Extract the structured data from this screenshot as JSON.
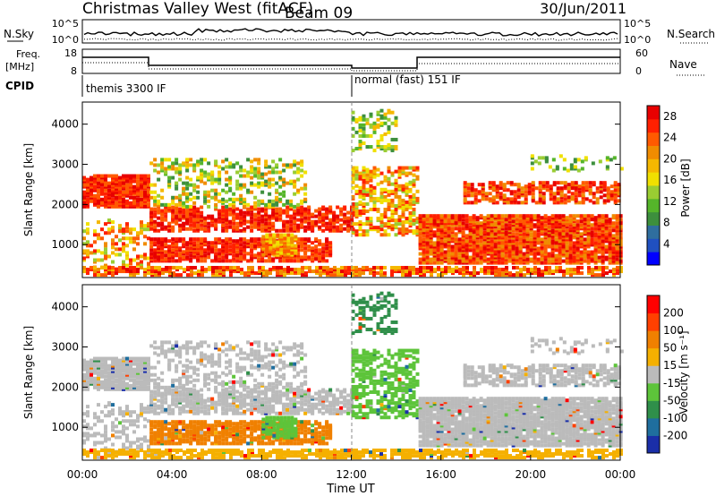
{
  "header": {
    "title": "Christmas Valley West (fitACF)",
    "beam": "Beam 09",
    "date": "30/Jun/2011"
  },
  "panels": {
    "nsky": {
      "label": "N.Sky",
      "ticks": [
        "10^5",
        "10^0"
      ],
      "right_label": "N.Search",
      "right_ticks": [
        "10^5",
        "10^0"
      ]
    },
    "freq": {
      "label_line1": "Freq.",
      "label_line2": "[MHz]",
      "ticks": [
        "18",
        "8"
      ],
      "right_label": "Nave",
      "right_ticks": [
        "60",
        "0"
      ]
    },
    "cpid": {
      "label": "CPID",
      "modes": [
        "themis 3300 IF",
        "normal (fast) 151 IF"
      ]
    }
  },
  "chart_data": [
    {
      "type": "heatmap",
      "name": "power",
      "ylabel": "Slant Range [km]",
      "ylim": [
        180,
        4550
      ],
      "yticks": [
        "1000",
        "2000",
        "3000",
        "4000"
      ],
      "xticks": [
        "00:00",
        "04:00",
        "08:00",
        "12:00",
        "16:00",
        "20:00",
        "00:00"
      ],
      "xlim_hours": [
        0,
        24
      ],
      "colorbar": {
        "label": "Power [dB]",
        "ticks": [
          "4",
          "8",
          "12",
          "16",
          "20",
          "24",
          "28"
        ],
        "range": [
          0,
          30
        ],
        "colors": [
          "#0000ff",
          "#2050c0",
          "#2f6e9e",
          "#3d8f3d",
          "#55b52a",
          "#9acd32",
          "#f0e000",
          "#f5b800",
          "#f08c00",
          "#ff5a00",
          "#ff2000",
          "#e80000"
        ]
      }
    },
    {
      "type": "heatmap",
      "name": "velocity",
      "ylabel": "Slant Range [km]",
      "ylim": [
        180,
        4550
      ],
      "yticks": [
        "1000",
        "2000",
        "3000",
        "4000"
      ],
      "xticks": [
        "00:00",
        "04:00",
        "08:00",
        "12:00",
        "16:00",
        "20:00",
        "00:00"
      ],
      "xlabel": "Time UT",
      "xlim_hours": [
        0,
        24
      ],
      "colorbar": {
        "label": "Velocity [m s⁻¹]",
        "ticks": [
          "200",
          "100",
          "50",
          "15",
          "-15",
          "-50",
          "-100",
          "-200"
        ],
        "colors": [
          "#1a2ea8",
          "#1f6e9e",
          "#2f8f4a",
          "#5dc43a",
          "#bbbbbb",
          "#f5b000",
          "#f08000",
          "#ff4000",
          "#ff0000"
        ]
      }
    }
  ]
}
